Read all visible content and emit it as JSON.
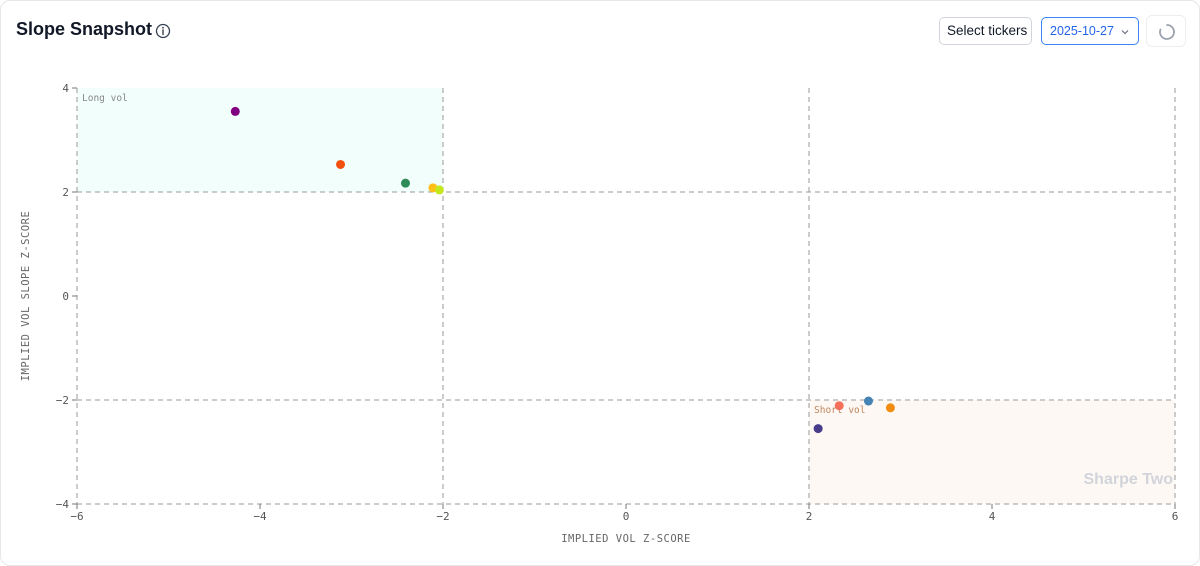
{
  "header": {
    "title": "Slope Snapshot",
    "ticker_button_label": "Select tickers",
    "date_value": "2025-10-27"
  },
  "icons": {
    "info": "info-icon",
    "chevron": "chevron-down-icon",
    "refresh": "loading-spinner-icon"
  },
  "watermark": "Sharpe Two",
  "chart_data": {
    "type": "scatter",
    "xlabel": "IMPLIED VOL Z-SCORE",
    "ylabel": "IMPLIED VOL SLOPE Z-SCORE",
    "xlim": [
      -6,
      6
    ],
    "ylim": [
      -4,
      4
    ],
    "xticks": [
      -6,
      -4,
      -2,
      0,
      2,
      4,
      6
    ],
    "yticks": [
      4,
      2,
      0,
      -2,
      -4
    ],
    "grid": false,
    "reference_lines": {
      "x": [
        -2,
        2
      ],
      "y": [
        2,
        -2
      ],
      "style": "dashed"
    },
    "regions": [
      {
        "label": "Long vol",
        "x": [
          -6,
          -2
        ],
        "y": [
          2,
          4
        ],
        "color": "#f2fefc",
        "label_color": "#888888"
      },
      {
        "label": "Short vol",
        "x": [
          2,
          6
        ],
        "y": [
          -4,
          -2
        ],
        "color": "#fdf8f4",
        "label_color": "#c0845c"
      }
    ],
    "points": [
      {
        "x": -4.27,
        "y": 3.55,
        "color": "#800080"
      },
      {
        "x": -3.12,
        "y": 2.53,
        "color": "#f2500e"
      },
      {
        "x": -2.41,
        "y": 2.17,
        "color": "#2e8b57"
      },
      {
        "x": -2.11,
        "y": 2.08,
        "color": "#ffbf16"
      },
      {
        "x": -2.04,
        "y": 2.04,
        "color": "#c5e81c"
      },
      {
        "x": 2.33,
        "y": -2.11,
        "color": "#f4705a"
      },
      {
        "x": 2.65,
        "y": -2.02,
        "color": "#4682b4"
      },
      {
        "x": 2.89,
        "y": -2.15,
        "color": "#f08d12"
      },
      {
        "x": 2.1,
        "y": -2.55,
        "color": "#483d8b"
      }
    ]
  }
}
